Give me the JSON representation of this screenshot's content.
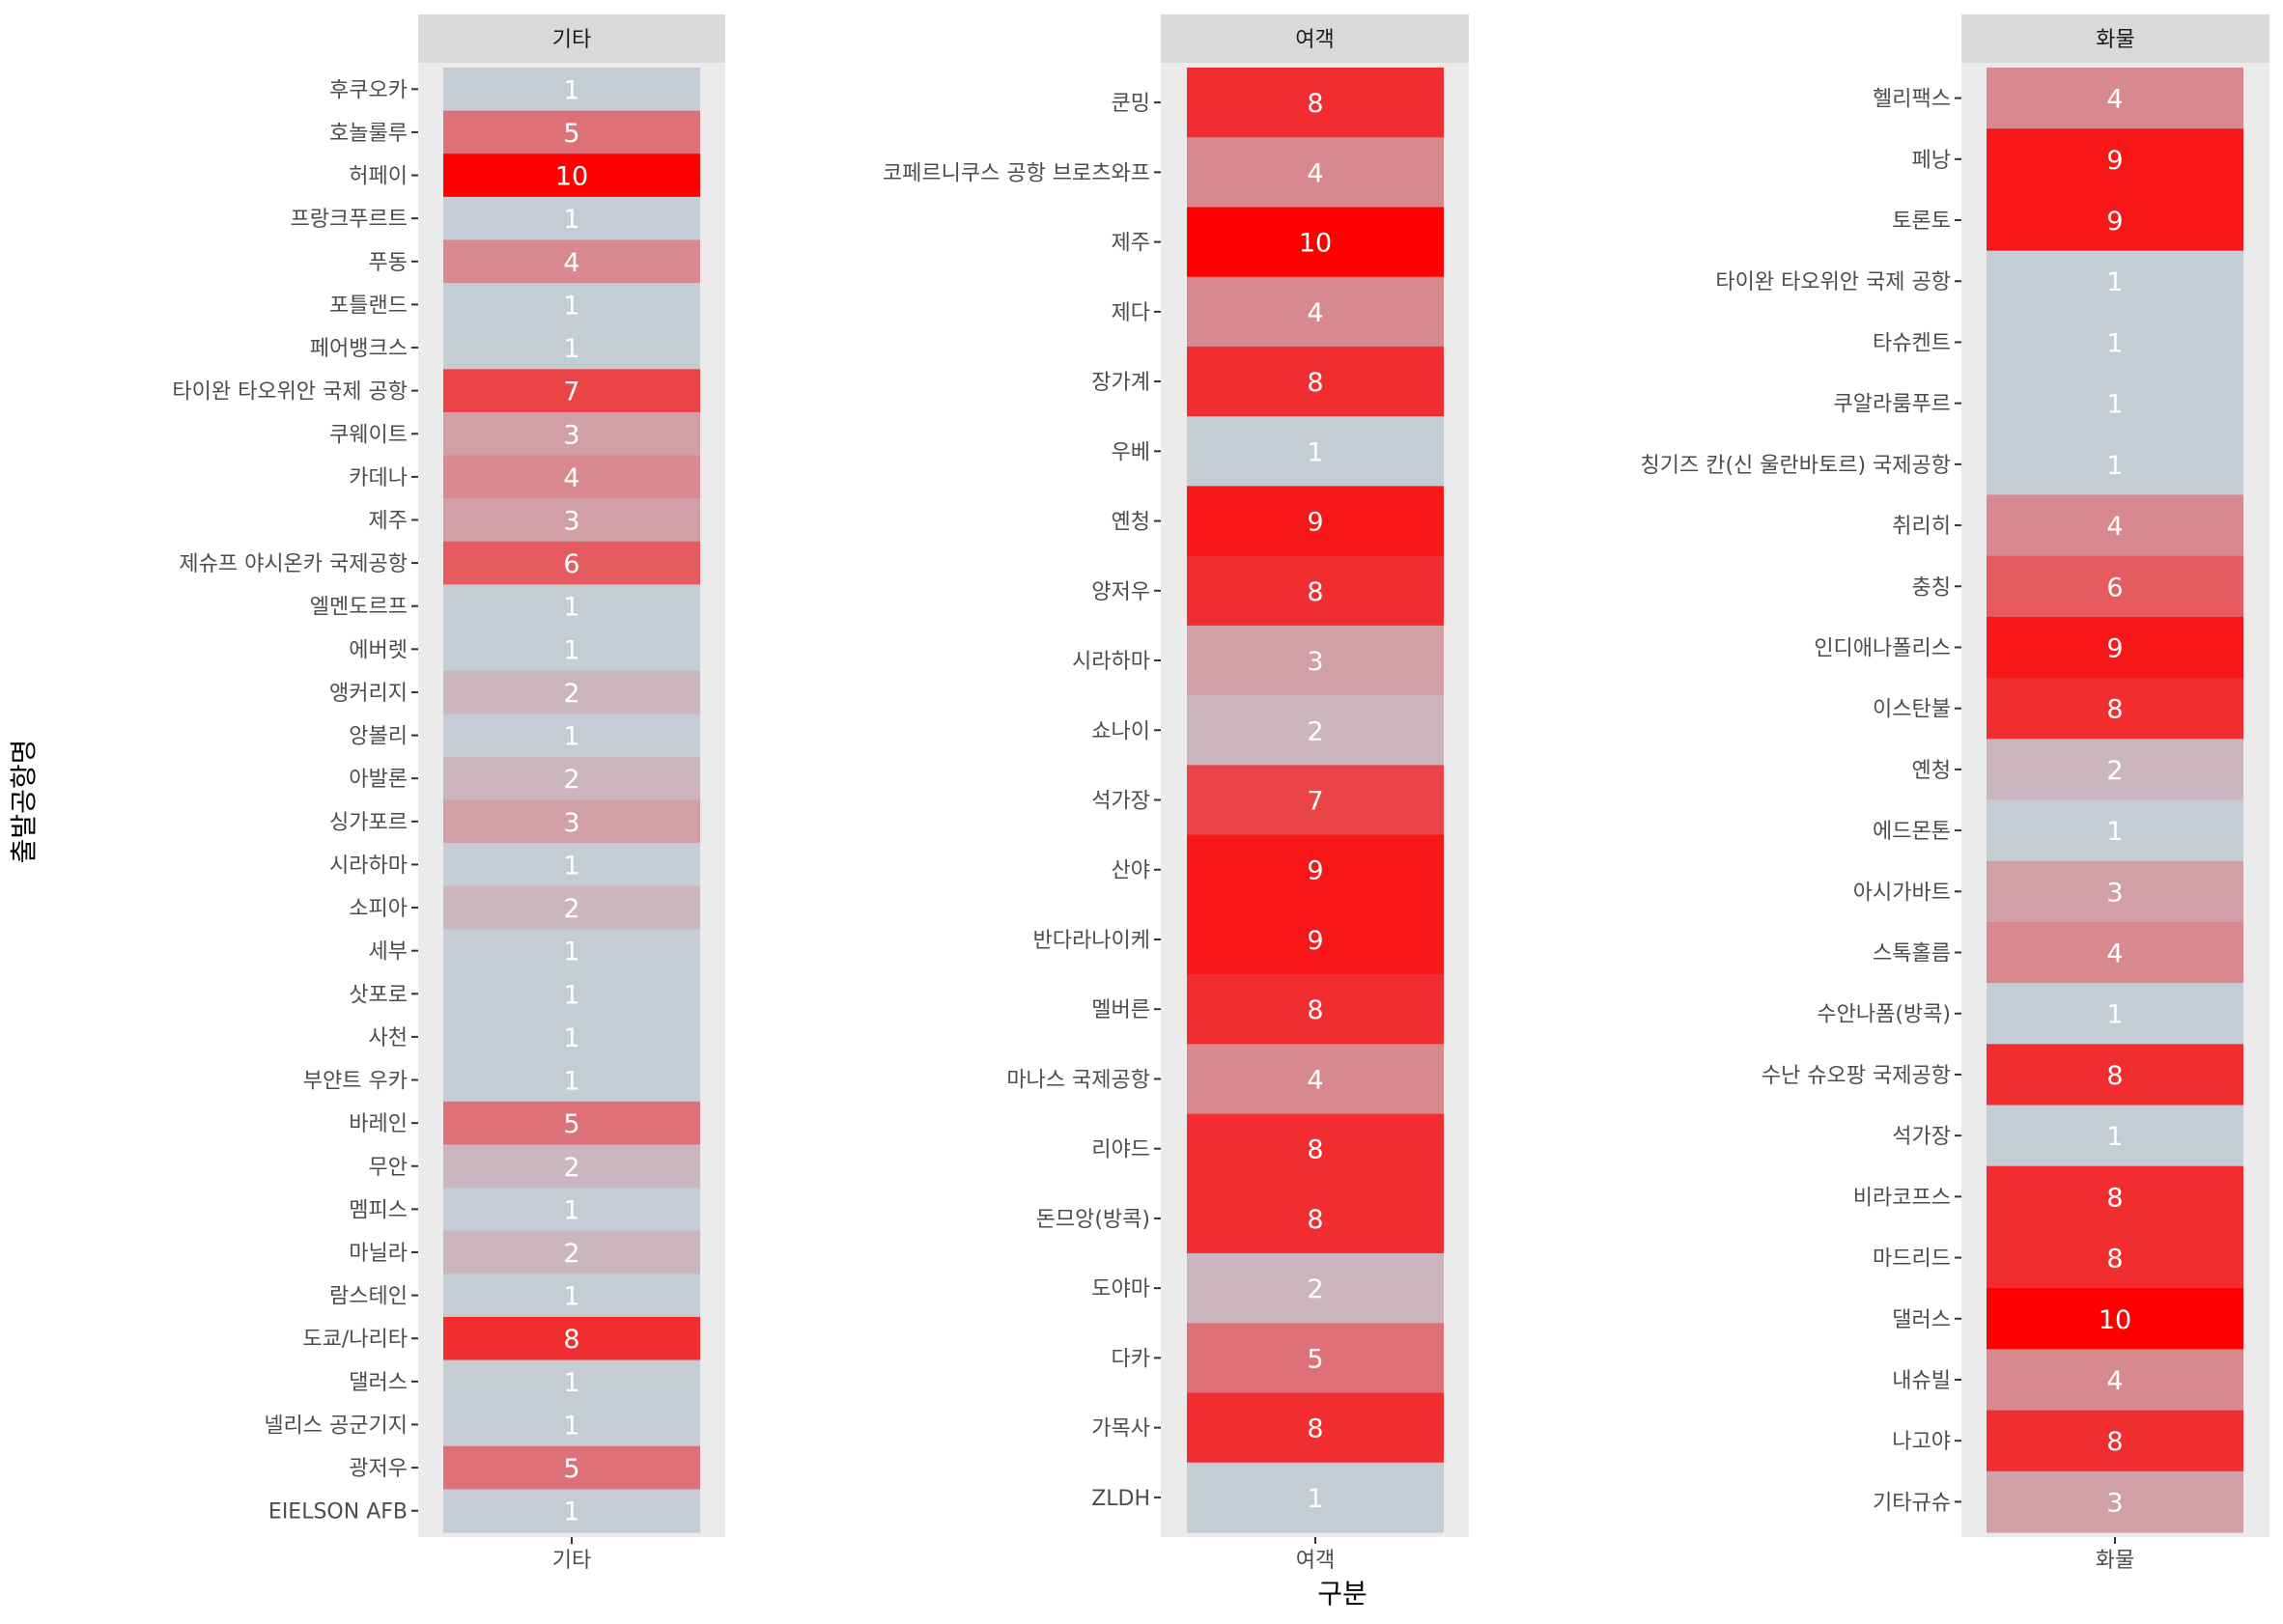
{
  "chart_data": {
    "type": "heatmap",
    "xlabel": "구분",
    "ylabel": "출발공항명",
    "color_scale": {
      "low": "#c4ccd6",
      "high": "#ff0000",
      "min": 1,
      "max": 10
    },
    "panels": [
      {
        "name": "기타",
        "x_tick": "기타",
        "rows": [
          {
            "label": "후쿠오카",
            "value": 1
          },
          {
            "label": "호놀룰루",
            "value": 5
          },
          {
            "label": "허페이",
            "value": 10
          },
          {
            "label": "프랑크푸르트",
            "value": 1
          },
          {
            "label": "푸동",
            "value": 4
          },
          {
            "label": "포틀랜드",
            "value": 1
          },
          {
            "label": "페어뱅크스",
            "value": 1
          },
          {
            "label": "타이완 타오위안 국제 공항",
            "value": 7
          },
          {
            "label": "쿠웨이트",
            "value": 3
          },
          {
            "label": "카데나",
            "value": 4
          },
          {
            "label": "제주",
            "value": 3
          },
          {
            "label": "제슈프 야시온카 국제공항",
            "value": 6
          },
          {
            "label": "엘멘도르프",
            "value": 1
          },
          {
            "label": "에버렛",
            "value": 1
          },
          {
            "label": "앵커리지",
            "value": 2
          },
          {
            "label": "앙볼리",
            "value": 1
          },
          {
            "label": "아발론",
            "value": 2
          },
          {
            "label": "싱가포르",
            "value": 3
          },
          {
            "label": "시라하마",
            "value": 1
          },
          {
            "label": "소피아",
            "value": 2
          },
          {
            "label": "세부",
            "value": 1
          },
          {
            "label": "삿포로",
            "value": 1
          },
          {
            "label": "사천",
            "value": 1
          },
          {
            "label": "부얀트 우카",
            "value": 1
          },
          {
            "label": "바레인",
            "value": 5
          },
          {
            "label": "무안",
            "value": 2
          },
          {
            "label": "멤피스",
            "value": 1
          },
          {
            "label": "마닐라",
            "value": 2
          },
          {
            "label": "람스테인",
            "value": 1
          },
          {
            "label": "도쿄/나리타",
            "value": 8
          },
          {
            "label": "댈러스",
            "value": 1
          },
          {
            "label": "넬리스 공군기지",
            "value": 1
          },
          {
            "label": "광저우",
            "value": 5
          },
          {
            "label": "EIELSON AFB",
            "value": 1
          }
        ]
      },
      {
        "name": "여객",
        "x_tick": "여객",
        "rows": [
          {
            "label": "쿤밍",
            "value": 8
          },
          {
            "label": "코페르니쿠스 공항 브로츠와프",
            "value": 4
          },
          {
            "label": "제주",
            "value": 10
          },
          {
            "label": "제다",
            "value": 4
          },
          {
            "label": "장가계",
            "value": 8
          },
          {
            "label": "우베",
            "value": 1
          },
          {
            "label": "옌청",
            "value": 9
          },
          {
            "label": "양저우",
            "value": 8
          },
          {
            "label": "시라하마",
            "value": 3
          },
          {
            "label": "쇼나이",
            "value": 2
          },
          {
            "label": "석가장",
            "value": 7
          },
          {
            "label": "산야",
            "value": 9
          },
          {
            "label": "반다라나이케",
            "value": 9
          },
          {
            "label": "멜버른",
            "value": 8
          },
          {
            "label": "마나스 국제공항",
            "value": 4
          },
          {
            "label": "리야드",
            "value": 8
          },
          {
            "label": "돈므앙(방콕)",
            "value": 8
          },
          {
            "label": "도야마",
            "value": 2
          },
          {
            "label": "다카",
            "value": 5
          },
          {
            "label": "가목사",
            "value": 8
          },
          {
            "label": "ZLDH",
            "value": 1
          }
        ]
      },
      {
        "name": "화물",
        "x_tick": "화물",
        "rows": [
          {
            "label": "헬리팩스",
            "value": 4
          },
          {
            "label": "페낭",
            "value": 9
          },
          {
            "label": "토론토",
            "value": 9
          },
          {
            "label": "타이완 타오위안 국제 공항",
            "value": 1
          },
          {
            "label": "타슈켄트",
            "value": 1
          },
          {
            "label": "쿠알라룸푸르",
            "value": 1
          },
          {
            "label": "칭기즈 칸(신 울란바토르) 국제공항",
            "value": 1
          },
          {
            "label": "취리히",
            "value": 4
          },
          {
            "label": "충칭",
            "value": 6
          },
          {
            "label": "인디애나폴리스",
            "value": 9
          },
          {
            "label": "이스탄불",
            "value": 8
          },
          {
            "label": "옌청",
            "value": 2
          },
          {
            "label": "에드몬톤",
            "value": 1
          },
          {
            "label": "아시가바트",
            "value": 3
          },
          {
            "label": "스톡홀름",
            "value": 4
          },
          {
            "label": "수안나폼(방콕)",
            "value": 1
          },
          {
            "label": "수난 슈오팡 국제공항",
            "value": 8
          },
          {
            "label": "석가장",
            "value": 1
          },
          {
            "label": "비라코프스",
            "value": 8
          },
          {
            "label": "마드리드",
            "value": 8
          },
          {
            "label": "댈러스",
            "value": 10
          },
          {
            "label": "내슈빌",
            "value": 4
          },
          {
            "label": "나고야",
            "value": 8
          },
          {
            "label": "기타규슈",
            "value": 3
          }
        ]
      }
    ]
  }
}
